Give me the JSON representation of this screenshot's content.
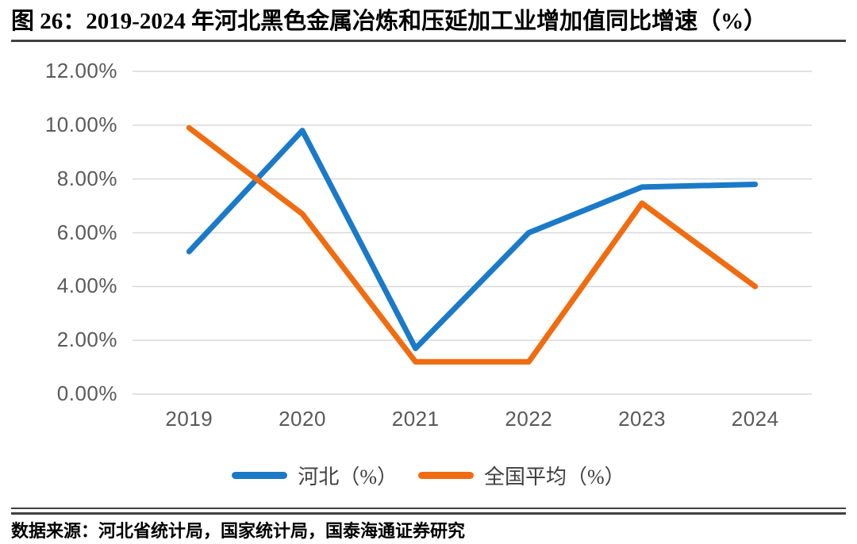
{
  "title": "图 26：2019-2024 年河北黑色金属冶炼和压延加工业增加值同比增速（%）",
  "source": "数据来源：河北省统计局，国家统计局，国泰海通证券研究",
  "colors": {
    "hebei_line": "#1B7AC8",
    "national_line": "#F06C11",
    "gridline": "#D9D9D9",
    "axis_label": "#595959",
    "rule": "#404040"
  },
  "chart_data": {
    "type": "line",
    "title": "2019-2024 年河北黑色金属冶炼和压延加工业增加值同比增速（%）",
    "categories": [
      "2019",
      "2020",
      "2021",
      "2022",
      "2023",
      "2024"
    ],
    "series": [
      {
        "name": "河北（%）",
        "color": "#1B7AC8",
        "values": [
          5.3,
          9.8,
          1.7,
          6.0,
          7.7,
          7.8
        ]
      },
      {
        "name": "全国平均（%）",
        "color": "#F06C11",
        "values": [
          9.9,
          6.7,
          1.2,
          1.2,
          7.1,
          4.0
        ]
      }
    ],
    "xlabel": "",
    "ylabel": "",
    "ylim": [
      0,
      12
    ],
    "y_step": 2,
    "y_ticks": [
      "12.00%",
      "10.00%",
      "8.00%",
      "6.00%",
      "4.00%",
      "2.00%",
      "0.00%"
    ],
    "grid": true,
    "legend_position": "bottom"
  }
}
